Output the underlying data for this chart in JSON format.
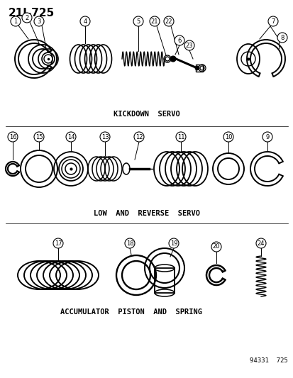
{
  "title": "21J-725",
  "bg_color": "#ffffff",
  "line_color": "#000000",
  "text_color": "#000000",
  "section1_label": "KICKDOWN  SERVO",
  "section2_label": "LOW  AND  REVERSE  SERVO",
  "section3_label": "ACCUMULATOR  PISTON  AND  SPRING",
  "footer": "94331  725",
  "figsize": [
    4.14,
    5.33
  ],
  "dpi": 100
}
